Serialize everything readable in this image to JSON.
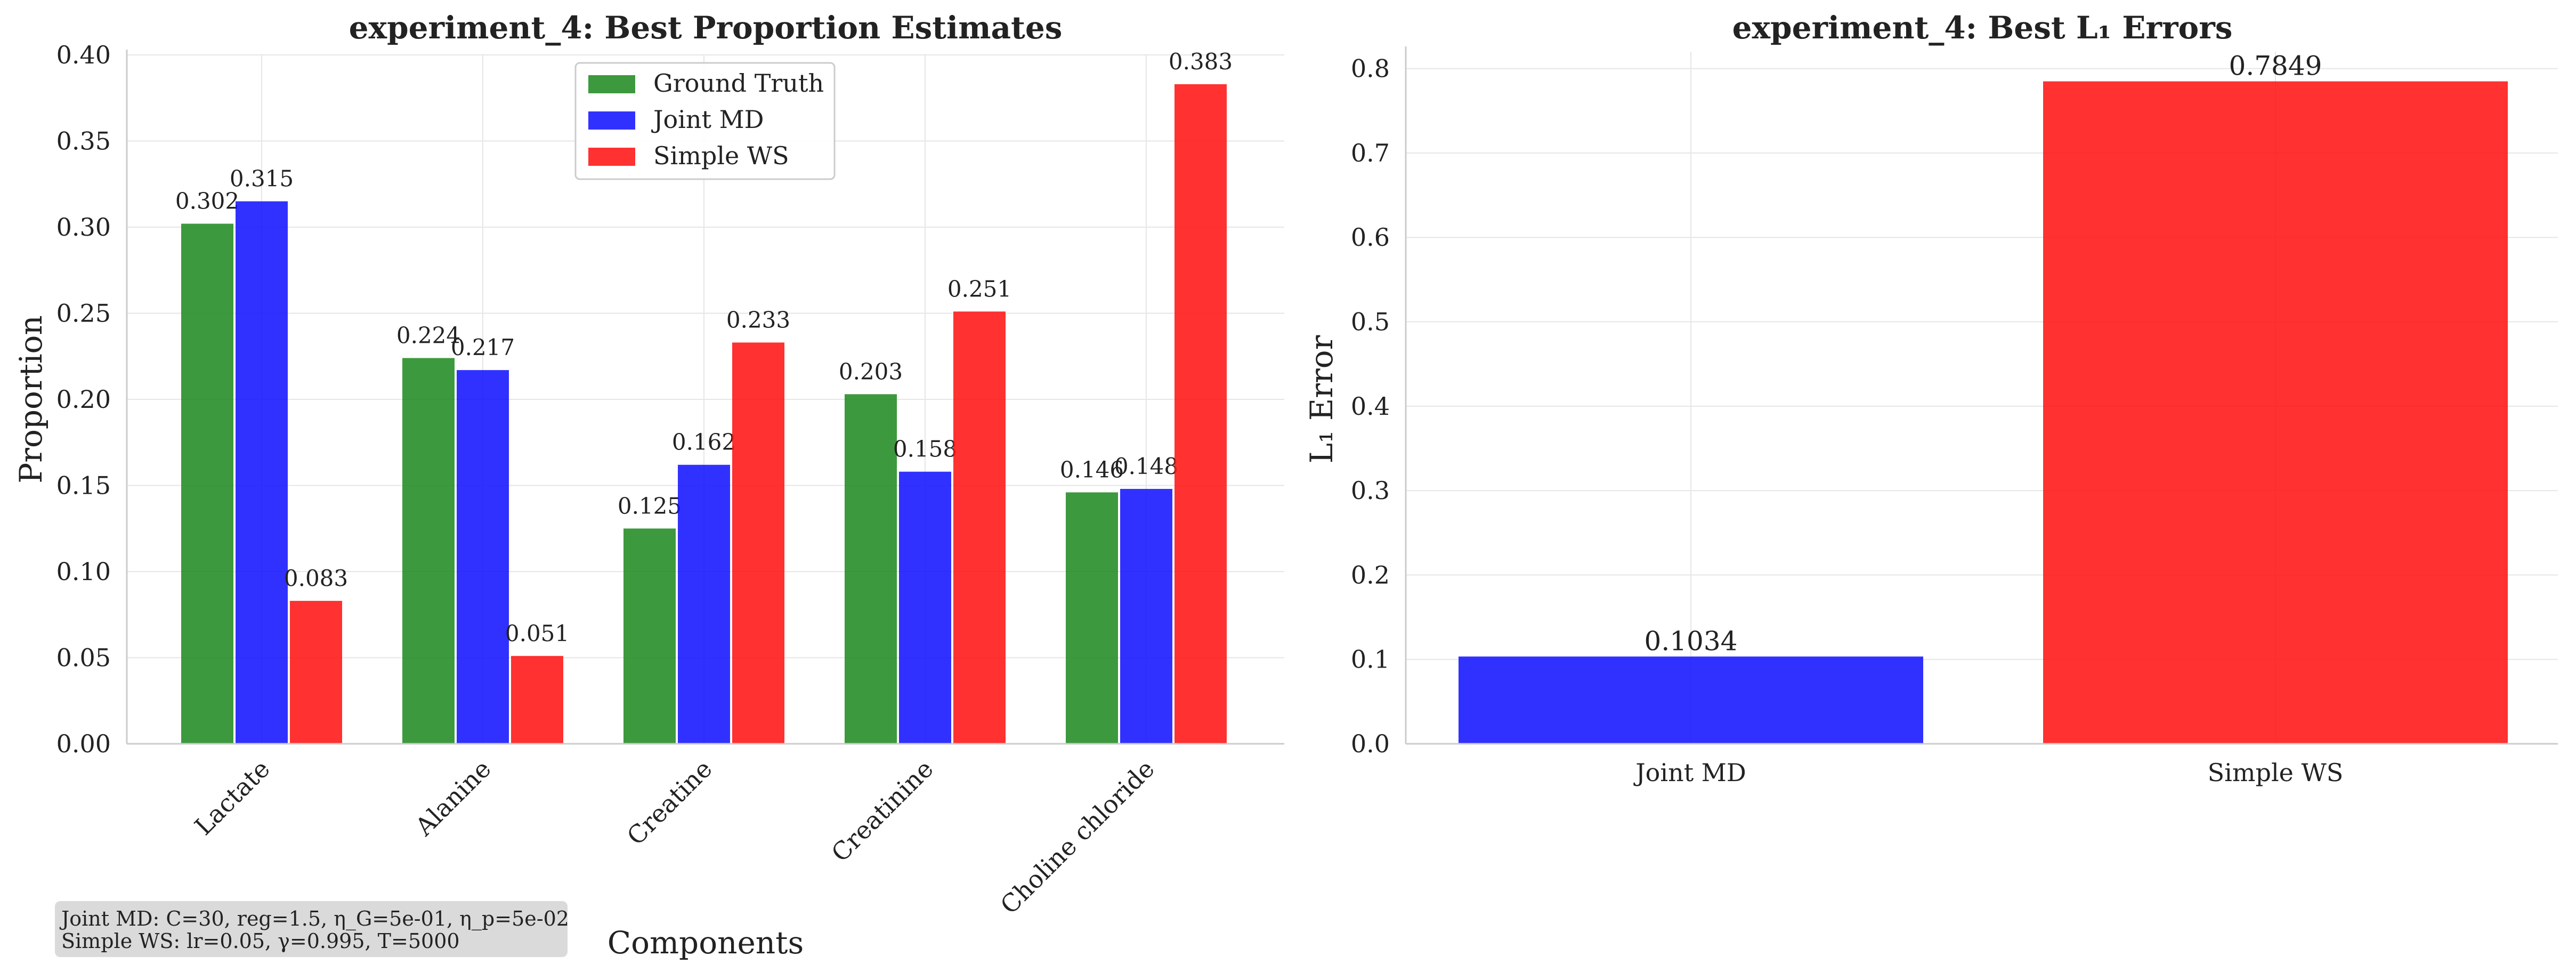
{
  "chart_data": [
    {
      "type": "bar",
      "title": "experiment_4: Best Proportion Estimates",
      "xlabel": "Components",
      "ylabel": "Proportion",
      "ylim": [
        0,
        0.4
      ],
      "yticks": [
        "0.00",
        "0.05",
        "0.10",
        "0.15",
        "0.20",
        "0.25",
        "0.30",
        "0.35",
        "0.40"
      ],
      "categories": [
        "Lactate",
        "Alanine",
        "Creatine",
        "Creatinine",
        "Choline chloride"
      ],
      "series": [
        {
          "name": "Ground Truth",
          "color": "#228B22",
          "values": [
            0.302,
            0.224,
            0.125,
            0.203,
            0.146
          ],
          "labels": [
            "0.302",
            "0.224",
            "0.125",
            "0.203",
            "0.146"
          ]
        },
        {
          "name": "Joint MD",
          "color": "#1414FF",
          "values": [
            0.315,
            0.217,
            0.162,
            0.158,
            0.148
          ],
          "labels": [
            "0.315",
            "0.217",
            "0.162",
            "0.158",
            "0.148"
          ]
        },
        {
          "name": "Simple WS",
          "color": "#FF1414",
          "values": [
            0.083,
            0.051,
            0.233,
            0.251,
            0.383
          ],
          "labels": [
            "0.083",
            "0.051",
            "0.233",
            "0.251",
            "0.383"
          ]
        }
      ],
      "grid": true,
      "legend": "top-center",
      "annotation": [
        "Joint MD: C=30, reg=1.5, η_G=5e-01, η_p=5e-02",
        "Simple WS: lr=0.05, γ=0.995, T=5000"
      ]
    },
    {
      "type": "bar",
      "title": "experiment_4: Best L₁ Errors",
      "xlabel": "",
      "ylabel": "L₁ Error",
      "ylim": [
        0,
        0.82
      ],
      "yticks": [
        "0.0",
        "0.1",
        "0.2",
        "0.3",
        "0.4",
        "0.5",
        "0.6",
        "0.7",
        "0.8"
      ],
      "categories": [
        "Joint MD",
        "Simple WS"
      ],
      "values": [
        0.1034,
        0.7849
      ],
      "labels": [
        "0.1034",
        "0.7849"
      ],
      "colors": [
        "#1414FF",
        "#FF1414"
      ],
      "grid": true
    }
  ]
}
